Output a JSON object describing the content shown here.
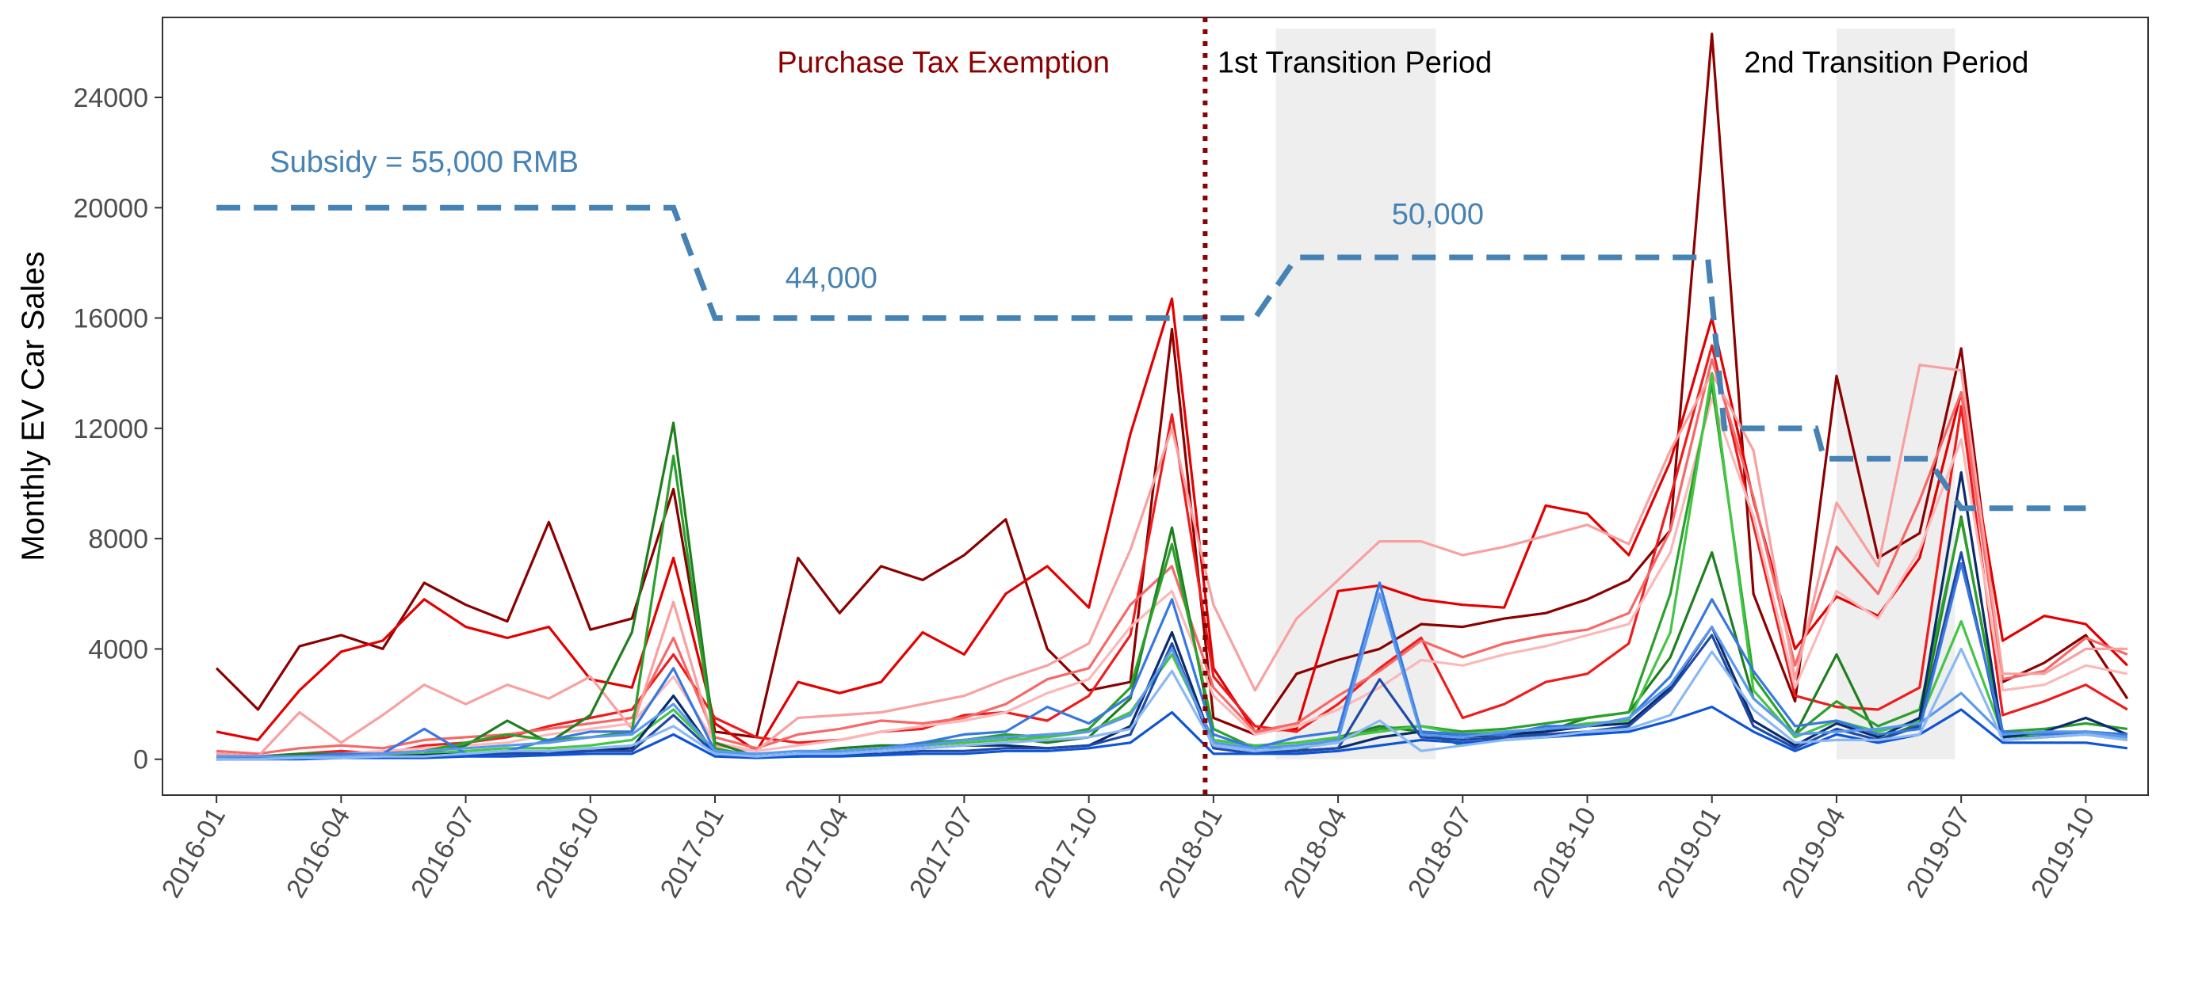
{
  "chart_data": {
    "type": "line",
    "ylabel": "Monthly EV Car Sales",
    "xlabel": "",
    "ylim": [
      -1300,
      26900
    ],
    "y_ticks": [
      0,
      4000,
      8000,
      12000,
      16000,
      20000,
      24000
    ],
    "y_tick_labels": [
      "0",
      "4000",
      "8000",
      "12000",
      "16000",
      "20000",
      "24000"
    ],
    "x_tick_labels": [
      "2016-01",
      "2016-04",
      "2016-07",
      "2016-10",
      "2017-01",
      "2017-04",
      "2017-07",
      "2017-10",
      "2018-01",
      "2018-04",
      "2018-07",
      "2018-10",
      "2019-01",
      "2019-04",
      "2019-07",
      "2019-10"
    ],
    "x_tick_months": [
      0,
      3,
      6,
      9,
      12,
      15,
      18,
      21,
      24,
      27,
      30,
      33,
      36,
      39,
      42,
      45
    ],
    "xlim_months": [
      -1.3,
      46.5
    ],
    "grid": false,
    "legend": "none",
    "shaded_regions": [
      {
        "start": 25.5,
        "end": 29.35
      },
      {
        "start": 39.0,
        "end": 41.85
      }
    ],
    "vline": {
      "x": 23.8,
      "color": "#8b0000"
    },
    "subsidy": {
      "color": "#4682b4",
      "points": [
        [
          0,
          20000
        ],
        [
          11,
          20000
        ],
        [
          12,
          16000
        ],
        [
          25,
          16000
        ],
        [
          26,
          18200
        ],
        [
          35.9,
          18200
        ],
        [
          36.3,
          12000
        ],
        [
          38.5,
          12000
        ],
        [
          38.7,
          10900
        ],
        [
          41.2,
          10900
        ],
        [
          42,
          9100
        ],
        [
          45,
          9100
        ]
      ]
    },
    "annotations": [
      {
        "text": "Purchase Tax Exemption",
        "x": 17.5,
        "y": 24900,
        "color": "#8b0000"
      },
      {
        "text": "1st Transition Period",
        "x": 27.4,
        "y": 24900,
        "color": "#000000"
      },
      {
        "text": "2nd Transition Period",
        "x": 40.2,
        "y": 24900,
        "color": "#000000"
      },
      {
        "text": "Subsidy = 55,000 RMB",
        "x": 5.0,
        "y": 21300,
        "color": "#4682b4"
      },
      {
        "text": "44,000",
        "x": 14.8,
        "y": 17100,
        "color": "#4682b4"
      },
      {
        "text": "50,000",
        "x": 29.4,
        "y": 19400,
        "color": "#4682b4"
      }
    ],
    "series": [
      {
        "color": "#8b0000",
        "values": [
          3300,
          1800,
          4100,
          4500,
          4000,
          6400,
          5600,
          5000,
          8600,
          4700,
          5100,
          9800,
          1000,
          800,
          7300,
          5300,
          7000,
          6500,
          7400,
          8700,
          4000,
          2500,
          2800,
          15600,
          1500,
          900,
          3100,
          3600,
          4000,
          4900,
          4800,
          5100,
          5300,
          5800,
          6500,
          8300,
          26300,
          6000,
          2100,
          13900,
          7300,
          8200,
          14900,
          2800,
          3500,
          4500,
          2200
        ]
      },
      {
        "color": "#e30000",
        "values": [
          1000,
          700,
          2500,
          3900,
          4300,
          5800,
          4800,
          4400,
          4800,
          2900,
          2600,
          7300,
          1300,
          300,
          2800,
          2400,
          2800,
          4600,
          3800,
          6000,
          7000,
          5500,
          11800,
          16700,
          3300,
          1000,
          1100,
          6100,
          6300,
          5800,
          5600,
          5500,
          9200,
          8900,
          7400,
          10800,
          16000,
          9400,
          4000,
          5900,
          5200,
          7300,
          13300,
          4300,
          5200,
          4900,
          3400
        ]
      },
      {
        "color": "#ee1c1c",
        "values": [
          200,
          100,
          200,
          300,
          200,
          500,
          600,
          800,
          1200,
          1500,
          1800,
          3800,
          1500,
          800,
          600,
          700,
          1000,
          1100,
          1600,
          1700,
          1400,
          2300,
          4500,
          12500,
          3000,
          1200,
          1000,
          2000,
          3300,
          4400,
          1500,
          2000,
          2800,
          3100,
          4200,
          9500,
          15000,
          8500,
          2300,
          1900,
          1800,
          2600,
          12800,
          1600,
          2100,
          2700,
          1800
        ]
      },
      {
        "color": "#f76868",
        "values": [
          300,
          200,
          400,
          500,
          400,
          700,
          800,
          900,
          1100,
          1300,
          1500,
          4400,
          800,
          400,
          900,
          1100,
          1400,
          1300,
          1500,
          2000,
          2900,
          3300,
          5600,
          7000,
          2600,
          1000,
          1300,
          2300,
          3200,
          4300,
          3700,
          4200,
          4500,
          4700,
          5300,
          8300,
          14500,
          9500,
          3400,
          7700,
          6000,
          9400,
          13300,
          2900,
          3200,
          4400,
          3800
        ]
      },
      {
        "color": "#f9a0a0",
        "values": [
          200,
          100,
          1700,
          600,
          1600,
          2700,
          2000,
          2700,
          2200,
          3000,
          1100,
          5700,
          500,
          300,
          1500,
          1600,
          1700,
          2000,
          2300,
          2900,
          3400,
          4200,
          7600,
          12000,
          5600,
          2500,
          5100,
          6500,
          7900,
          7900,
          7400,
          7700,
          8100,
          8500,
          7800,
          11200,
          14000,
          11200,
          2900,
          9300,
          7000,
          14300,
          14100,
          3100,
          3100,
          4000,
          4000
        ]
      },
      {
        "color": "#fbb8b8",
        "values": [
          100,
          100,
          200,
          200,
          300,
          400,
          500,
          600,
          900,
          1100,
          1300,
          3000,
          600,
          300,
          500,
          700,
          1000,
          1200,
          1400,
          1700,
          2400,
          2900,
          4800,
          6100,
          2300,
          900,
          1200,
          1800,
          2600,
          3600,
          3400,
          3800,
          4100,
          4500,
          4900,
          7500,
          13100,
          8800,
          2600,
          6100,
          5100,
          7600,
          11600,
          2500,
          2700,
          3400,
          3100
        ]
      },
      {
        "color": "#1f7f1f",
        "values": [
          100,
          100,
          200,
          200,
          100,
          200,
          500,
          1400,
          600,
          1600,
          4600,
          12200,
          600,
          100,
          200,
          400,
          500,
          500,
          700,
          800,
          600,
          800,
          2200,
          8400,
          700,
          500,
          300,
          800,
          1200,
          1000,
          500,
          800,
          1000,
          1500,
          1700,
          3700,
          7500,
          2200,
          900,
          3800,
          700,
          1300,
          8800,
          800,
          900,
          1000,
          800
        ]
      },
      {
        "color": "#2ca02c",
        "values": [
          100,
          50,
          100,
          150,
          200,
          300,
          600,
          900,
          700,
          800,
          1000,
          11000,
          400,
          100,
          200,
          300,
          400,
          600,
          700,
          900,
          800,
          1100,
          2600,
          7800,
          1100,
          400,
          500,
          700,
          1100,
          1200,
          1000,
          1100,
          1300,
          1500,
          1700,
          6000,
          13600,
          3000,
          900,
          2100,
          1200,
          1800,
          8700,
          1000,
          1100,
          1300,
          1100
        ]
      },
      {
        "color": "#44c544",
        "values": [
          0,
          50,
          100,
          100,
          150,
          200,
          300,
          400,
          400,
          500,
          700,
          1800,
          300,
          100,
          200,
          300,
          400,
          500,
          600,
          700,
          800,
          1000,
          1700,
          3800,
          700,
          500,
          600,
          800,
          1000,
          1200,
          900,
          1000,
          1100,
          1300,
          1400,
          4600,
          14000,
          2500,
          800,
          1400,
          1000,
          1400,
          5000,
          900,
          900,
          1000,
          900
        ]
      },
      {
        "color": "#0b2b6b",
        "values": [
          0,
          50,
          50,
          100,
          100,
          150,
          200,
          200,
          300,
          300,
          400,
          2300,
          200,
          100,
          100,
          200,
          300,
          400,
          500,
          500,
          400,
          500,
          1200,
          4600,
          500,
          300,
          300,
          400,
          800,
          1000,
          800,
          900,
          1000,
          1200,
          1300,
          2600,
          4800,
          1400,
          500,
          1300,
          800,
          1500,
          10400,
          800,
          1000,
          1500,
          900
        ]
      },
      {
        "color": "#1f4aa8",
        "values": [
          0,
          0,
          50,
          50,
          100,
          100,
          150,
          200,
          200,
          300,
          300,
          1600,
          200,
          100,
          100,
          150,
          200,
          300,
          300,
          400,
          400,
          500,
          900,
          4200,
          400,
          200,
          300,
          400,
          2900,
          800,
          700,
          800,
          900,
          1000,
          1200,
          2500,
          4500,
          1200,
          400,
          1100,
          700,
          1200,
          7500,
          700,
          800,
          900,
          700
        ]
      },
      {
        "color": "#0e54d6",
        "values": [
          0,
          0,
          0,
          50,
          50,
          50,
          100,
          100,
          150,
          200,
          200,
          900,
          100,
          50,
          100,
          100,
          150,
          200,
          200,
          300,
          300,
          400,
          600,
          1700,
          200,
          200,
          200,
          300,
          500,
          700,
          600,
          700,
          800,
          900,
          1000,
          1400,
          1900,
          1000,
          300,
          900,
          600,
          900,
          1800,
          600,
          600,
          600,
          400
        ]
      },
      {
        "color": "#3878e0",
        "values": [
          100,
          100,
          100,
          200,
          200,
          1100,
          200,
          300,
          700,
          1000,
          1000,
          3300,
          300,
          100,
          200,
          300,
          400,
          600,
          900,
          1000,
          1900,
          1300,
          2300,
          5800,
          900,
          400,
          800,
          1000,
          6400,
          1000,
          900,
          900,
          1200,
          1200,
          1500,
          3000,
          5800,
          3200,
          1200,
          1400,
          900,
          1100,
          7100,
          1000,
          900,
          1000,
          900
        ]
      },
      {
        "color": "#5a98ee",
        "values": [
          100,
          100,
          100,
          100,
          200,
          300,
          400,
          500,
          600,
          800,
          900,
          2000,
          300,
          200,
          300,
          300,
          400,
          500,
          700,
          800,
          900,
          1000,
          1600,
          4000,
          600,
          400,
          500,
          700,
          6000,
          900,
          800,
          1000,
          1100,
          1200,
          1500,
          2700,
          4800,
          2200,
          900,
          1000,
          1100,
          1300,
          2400,
          900,
          1000,
          1000,
          800
        ]
      },
      {
        "color": "#8ab8f5",
        "values": [
          0,
          0,
          50,
          50,
          100,
          100,
          200,
          300,
          300,
          400,
          500,
          1200,
          200,
          100,
          200,
          200,
          300,
          400,
          500,
          600,
          700,
          800,
          1100,
          3200,
          500,
          300,
          400,
          600,
          1400,
          300,
          500,
          700,
          800,
          1000,
          1100,
          1600,
          3900,
          1800,
          600,
          700,
          700,
          900,
          4000,
          700,
          800,
          900,
          700
        ]
      }
    ]
  }
}
